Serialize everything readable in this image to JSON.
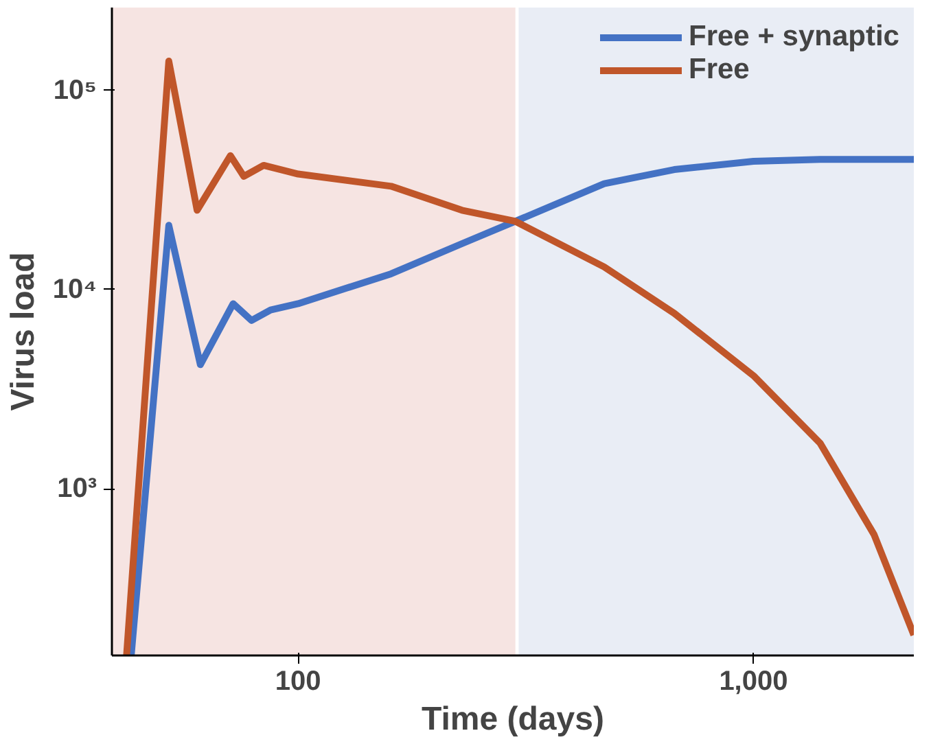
{
  "chart_data": {
    "type": "line",
    "xlabel": "Time (days)",
    "ylabel": "Virus load",
    "log": "xy",
    "grid": false,
    "legend": "top right",
    "line_style": "solid",
    "marker": "none",
    "xlim": [
      39,
      2250
    ],
    "ylim": [
      146,
      260000
    ],
    "xticks": [
      100,
      {
        "value": 1000,
        "label": "1,000"
      }
    ],
    "yticks": [
      {
        "value": 1000,
        "label": "10³"
      },
      {
        "value": 10000,
        "label": "10⁴"
      },
      {
        "value": 100000,
        "label": "10⁵"
      }
    ],
    "bands": [
      {
        "axis": "x",
        "from": 39,
        "to": 300,
        "color": "#f6e4e2"
      },
      {
        "axis": "x",
        "from": 305,
        "to": 2250,
        "color": "#e9edf5"
      }
    ],
    "series": [
      {
        "name": "Free + synaptic",
        "color": "#4472c4",
        "x": [
          43,
          52,
          61,
          72,
          79,
          87,
          100,
          160,
          229,
          300,
          470,
          670,
          1000,
          1400,
          2250
        ],
        "values": [
          146,
          21000,
          4200,
          8500,
          7000,
          7900,
          8500,
          12000,
          17000,
          22000,
          34000,
          40000,
          44000,
          45000,
          45000
        ]
      },
      {
        "name": "Free",
        "color": "#c0562a",
        "x": [
          42,
          52,
          60,
          71,
          76,
          84,
          100,
          160,
          229,
          300,
          470,
          670,
          1000,
          1400,
          1840,
          2250
        ],
        "values": [
          146,
          140000,
          25000,
          47000,
          37000,
          42000,
          38000,
          33000,
          25000,
          22000,
          13000,
          7600,
          3700,
          1700,
          590,
          185
        ]
      }
    ]
  }
}
